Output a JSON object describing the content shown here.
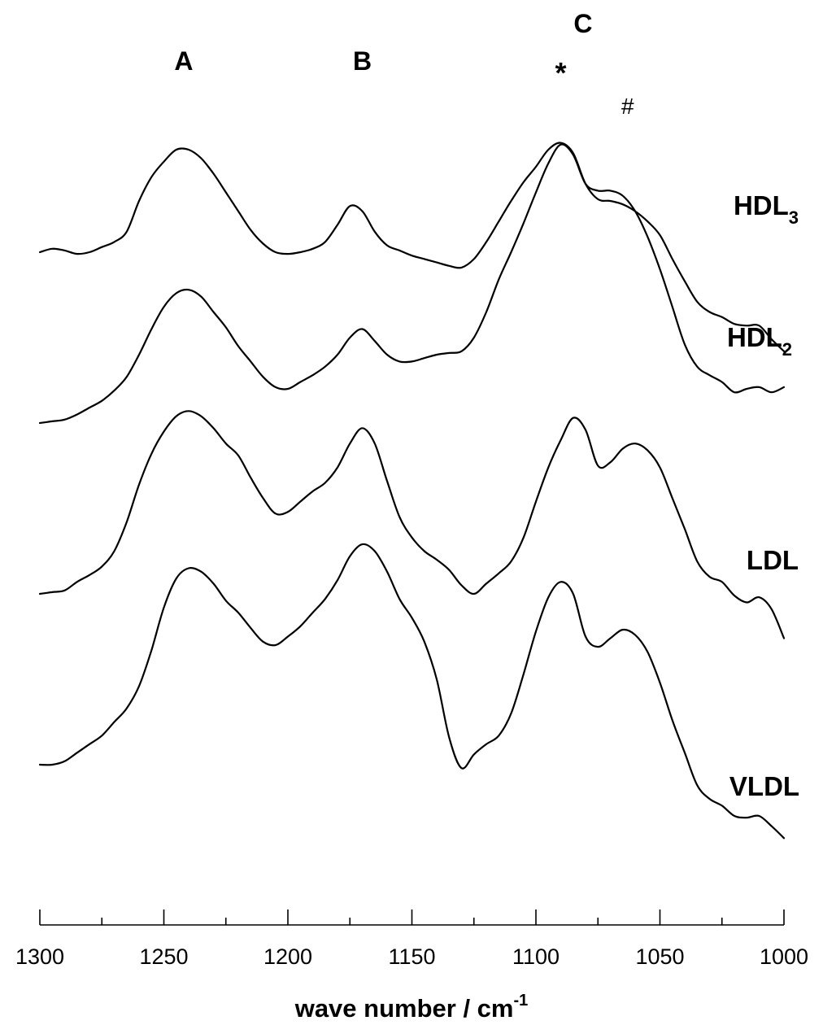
{
  "chart_data": {
    "type": "line",
    "xlabel": "wave number / cm",
    "xlabel_superscript": "-1",
    "xlim": [
      1300,
      1000
    ],
    "x_ticks": [
      1300,
      1250,
      1200,
      1150,
      1100,
      1050,
      1000
    ],
    "x_reversed": true,
    "y_axis_shown": false,
    "grid": false,
    "series": [
      {
        "name": "HDL",
        "name_subscript": "3",
        "offset": 3,
        "x": [
          1300,
          1295,
          1290,
          1285,
          1280,
          1275,
          1270,
          1265,
          1260,
          1255,
          1250,
          1245,
          1240,
          1235,
          1230,
          1225,
          1220,
          1215,
          1210,
          1205,
          1200,
          1195,
          1190,
          1185,
          1180,
          1175,
          1170,
          1165,
          1160,
          1155,
          1150,
          1145,
          1140,
          1135,
          1130,
          1125,
          1120,
          1115,
          1110,
          1105,
          1100,
          1095,
          1090,
          1085,
          1080,
          1075,
          1070,
          1065,
          1060,
          1055,
          1050,
          1045,
          1040,
          1035,
          1030,
          1025,
          1020,
          1015,
          1010,
          1005,
          1000
        ],
        "y": [
          0.0,
          0.02,
          0.01,
          -0.01,
          0.0,
          0.03,
          0.06,
          0.12,
          0.3,
          0.44,
          0.53,
          0.6,
          0.6,
          0.55,
          0.46,
          0.35,
          0.24,
          0.13,
          0.05,
          0.0,
          -0.01,
          0.0,
          0.02,
          0.06,
          0.16,
          0.27,
          0.24,
          0.12,
          0.04,
          0.01,
          -0.02,
          -0.04,
          -0.06,
          -0.08,
          -0.09,
          -0.04,
          0.06,
          0.18,
          0.3,
          0.41,
          0.5,
          0.6,
          0.64,
          0.58,
          0.4,
          0.31,
          0.3,
          0.28,
          0.24,
          0.18,
          0.1,
          -0.04,
          -0.17,
          -0.29,
          -0.35,
          -0.38,
          -0.42,
          -0.43,
          -0.43,
          -0.51,
          -0.58
        ]
      },
      {
        "name": "HDL",
        "name_subscript": "2",
        "offset": 2,
        "x": [
          1300,
          1295,
          1290,
          1285,
          1280,
          1275,
          1270,
          1265,
          1260,
          1255,
          1250,
          1245,
          1240,
          1235,
          1230,
          1225,
          1220,
          1215,
          1210,
          1205,
          1200,
          1195,
          1190,
          1185,
          1180,
          1175,
          1170,
          1165,
          1160,
          1155,
          1150,
          1145,
          1140,
          1135,
          1130,
          1125,
          1120,
          1115,
          1110,
          1105,
          1100,
          1095,
          1090,
          1085,
          1080,
          1075,
          1070,
          1065,
          1060,
          1055,
          1050,
          1045,
          1040,
          1035,
          1030,
          1025,
          1020,
          1015,
          1010,
          1005,
          1000
        ],
        "y": [
          0.0,
          0.01,
          0.02,
          0.05,
          0.09,
          0.13,
          0.19,
          0.27,
          0.4,
          0.55,
          0.68,
          0.76,
          0.78,
          0.74,
          0.65,
          0.56,
          0.45,
          0.36,
          0.27,
          0.21,
          0.2,
          0.24,
          0.28,
          0.33,
          0.4,
          0.5,
          0.55,
          0.48,
          0.4,
          0.36,
          0.36,
          0.38,
          0.4,
          0.41,
          0.42,
          0.5,
          0.65,
          0.84,
          1.0,
          1.17,
          1.35,
          1.52,
          1.63,
          1.57,
          1.4,
          1.36,
          1.36,
          1.33,
          1.24,
          1.09,
          0.9,
          0.68,
          0.46,
          0.33,
          0.28,
          0.24,
          0.18,
          0.2,
          0.21,
          0.18,
          0.21
        ]
      },
      {
        "name": "LDL",
        "offset": 1,
        "x": [
          1300,
          1295,
          1290,
          1285,
          1280,
          1275,
          1270,
          1265,
          1260,
          1255,
          1250,
          1245,
          1240,
          1235,
          1230,
          1225,
          1220,
          1215,
          1210,
          1205,
          1200,
          1195,
          1190,
          1185,
          1180,
          1175,
          1170,
          1165,
          1160,
          1155,
          1150,
          1145,
          1140,
          1135,
          1130,
          1125,
          1120,
          1115,
          1110,
          1105,
          1100,
          1095,
          1090,
          1085,
          1080,
          1075,
          1070,
          1065,
          1060,
          1055,
          1050,
          1045,
          1040,
          1035,
          1030,
          1025,
          1020,
          1015,
          1010,
          1005,
          1000
        ],
        "y": [
          0.0,
          0.01,
          0.02,
          0.07,
          0.11,
          0.16,
          0.25,
          0.42,
          0.64,
          0.82,
          0.95,
          1.04,
          1.07,
          1.04,
          0.97,
          0.88,
          0.81,
          0.68,
          0.56,
          0.47,
          0.48,
          0.54,
          0.6,
          0.65,
          0.74,
          0.88,
          0.97,
          0.88,
          0.66,
          0.45,
          0.33,
          0.25,
          0.2,
          0.14,
          0.05,
          0.0,
          0.06,
          0.12,
          0.19,
          0.33,
          0.54,
          0.74,
          0.9,
          1.03,
          0.96,
          0.75,
          0.77,
          0.85,
          0.88,
          0.84,
          0.74,
          0.56,
          0.38,
          0.19,
          0.1,
          0.07,
          -0.01,
          -0.05,
          -0.02,
          -0.09,
          -0.26
        ]
      },
      {
        "name": "VLDL",
        "offset": 0,
        "x": [
          1300,
          1295,
          1290,
          1285,
          1280,
          1275,
          1270,
          1265,
          1260,
          1255,
          1250,
          1245,
          1240,
          1235,
          1230,
          1225,
          1220,
          1215,
          1210,
          1205,
          1200,
          1195,
          1190,
          1185,
          1180,
          1175,
          1170,
          1165,
          1160,
          1155,
          1150,
          1145,
          1140,
          1135,
          1130,
          1125,
          1120,
          1115,
          1110,
          1105,
          1100,
          1095,
          1090,
          1085,
          1080,
          1075,
          1070,
          1065,
          1060,
          1055,
          1050,
          1045,
          1040,
          1035,
          1030,
          1025,
          1020,
          1015,
          1010,
          1005,
          1000
        ],
        "y": [
          0.0,
          0.0,
          0.02,
          0.07,
          0.12,
          0.17,
          0.25,
          0.33,
          0.46,
          0.67,
          0.92,
          1.09,
          1.15,
          1.13,
          1.06,
          0.96,
          0.89,
          0.8,
          0.72,
          0.7,
          0.75,
          0.81,
          0.89,
          0.97,
          1.08,
          1.22,
          1.29,
          1.25,
          1.13,
          0.97,
          0.86,
          0.72,
          0.5,
          0.16,
          -0.02,
          0.06,
          0.12,
          0.17,
          0.3,
          0.53,
          0.78,
          0.98,
          1.07,
          1.0,
          0.75,
          0.69,
          0.74,
          0.79,
          0.76,
          0.66,
          0.48,
          0.26,
          0.07,
          -0.12,
          -0.2,
          -0.24,
          -0.3,
          -0.31,
          -0.3,
          -0.36,
          -0.43
        ]
      }
    ],
    "annotations": [
      {
        "text": "A",
        "x": 1242
      },
      {
        "text": "B",
        "x": 1170
      },
      {
        "text": "C",
        "x": 1081
      },
      {
        "text": "*",
        "x": 1090
      },
      {
        "text": "#",
        "x": 1063
      }
    ]
  }
}
